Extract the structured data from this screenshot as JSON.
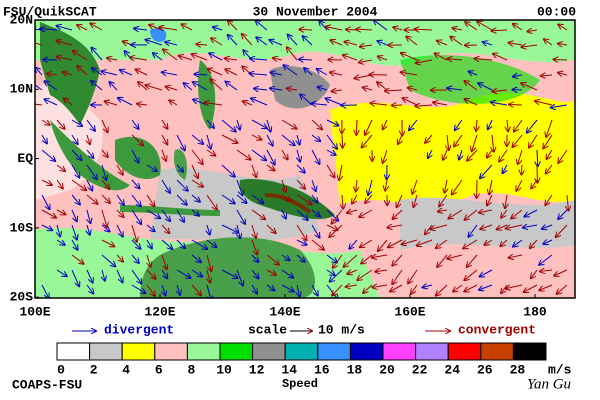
{
  "header": {
    "left": "FSU/QuikSCAT",
    "date": "30 November 2004",
    "time": "00:00"
  },
  "map": {
    "lat_labels": [
      "20N",
      "10N",
      "EQ",
      "10S",
      "20S"
    ],
    "lon_labels": [
      "100E",
      "120E",
      "140E",
      "160E",
      "180"
    ]
  },
  "legend": {
    "divergent": "divergent",
    "scale": "scale",
    "scale_value": "10 m/s",
    "convergent": "convergent"
  },
  "colorbar": {
    "colors": [
      "#ffffff",
      "#c8c8c8",
      "#ffff00",
      "#ffc0c0",
      "#98f898",
      "#00e000",
      "#909090",
      "#00b0b0",
      "#3890ff",
      "#0000c0",
      "#ff40ff",
      "#b080ff",
      "#ff0000",
      "#c84000",
      "#000000"
    ],
    "ticks": [
      0,
      2,
      4,
      6,
      8,
      10,
      12,
      14,
      16,
      18,
      20,
      22,
      24,
      26,
      28
    ],
    "unit": "m/s",
    "label": "Speed"
  },
  "footer": {
    "left": "COAPS-FSU",
    "right": "Yan Gu"
  }
}
